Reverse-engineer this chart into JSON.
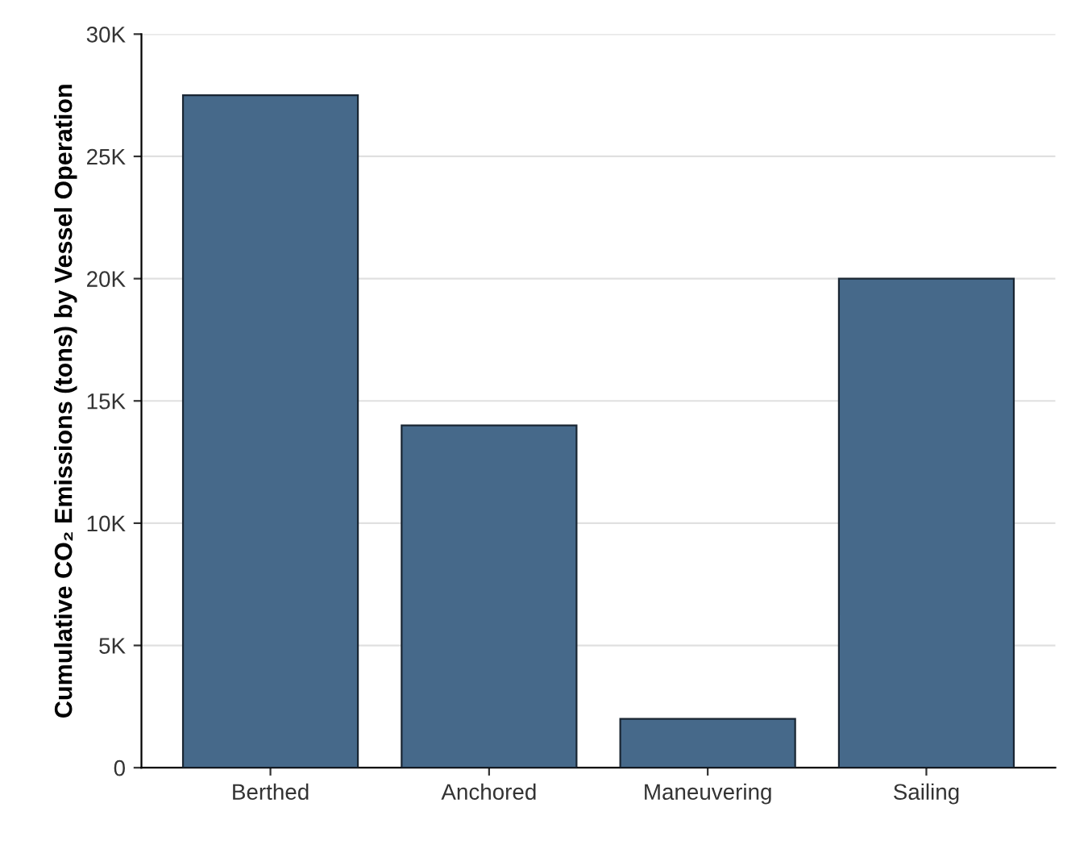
{
  "chart_data": {
    "type": "bar",
    "ylabel": "Cumulative CO₂ Emissions (tons) by Vessel Operation",
    "categories": [
      "Berthed",
      "Anchored",
      "Maneuvering",
      "Sailing"
    ],
    "values": [
      27500,
      14000,
      2000,
      20000
    ],
    "color": "#46698a",
    "ylim": [
      0,
      30000
    ],
    "yticks": [
      0,
      {
        "value": 5000,
        "label": "5K"
      },
      {
        "value": 10000,
        "label": "10K"
      },
      {
        "value": 15000,
        "label": "15K"
      },
      {
        "value": 20000,
        "label": "20K"
      },
      {
        "value": 25000,
        "label": "25K"
      },
      {
        "value": 30000,
        "label": "30K"
      }
    ],
    "grid": "y"
  }
}
